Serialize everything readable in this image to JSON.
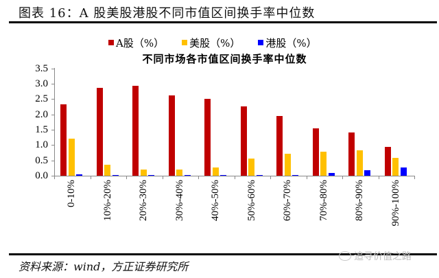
{
  "figure": {
    "title": "图表 16：A 股美股港股不同市值区间换手率中位数",
    "source": "资料来源：wind，方正证券研究所",
    "watermark": "追寻价值之路",
    "watermark_icon": "wechat-icon"
  },
  "legend": [
    {
      "label": "A股（%）",
      "color": "#C00000"
    },
    {
      "label": "美股（%）",
      "color": "#FFC000"
    },
    {
      "label": "港股（%）",
      "color": "#0000FF"
    }
  ],
  "chart_data": {
    "type": "bar",
    "title": "不同市场各市值区间换手率中位数",
    "xlabel": "",
    "ylabel": "",
    "ylim": [
      0,
      3.5
    ],
    "yticks": [
      "0.0",
      "0.5",
      "1.0",
      "1.5",
      "2.0",
      "2.5",
      "3.0",
      "3.5"
    ],
    "grid": false,
    "legend_position": "top",
    "categories": [
      "0-10%",
      "10%-20%",
      "20%-30%",
      "30%-40%",
      "40%-50%",
      "50%-60%",
      "60%-70%",
      "70%-80%",
      "80%-90%",
      "90%-100%"
    ],
    "series": [
      {
        "name": "A股（%）",
        "color": "#C00000",
        "values": [
          2.33,
          2.86,
          2.92,
          2.62,
          2.5,
          2.25,
          1.95,
          1.54,
          1.42,
          0.93
        ]
      },
      {
        "name": "美股（%）",
        "color": "#FFC000",
        "values": [
          1.21,
          0.36,
          0.2,
          0.2,
          0.26,
          0.57,
          0.72,
          0.78,
          0.82,
          0.59
        ]
      },
      {
        "name": "港股（%）",
        "color": "#0000FF",
        "values": [
          0.04,
          0.02,
          0.01,
          0.01,
          0.01,
          0.03,
          0.03,
          0.1,
          0.17,
          0.26
        ]
      }
    ]
  }
}
